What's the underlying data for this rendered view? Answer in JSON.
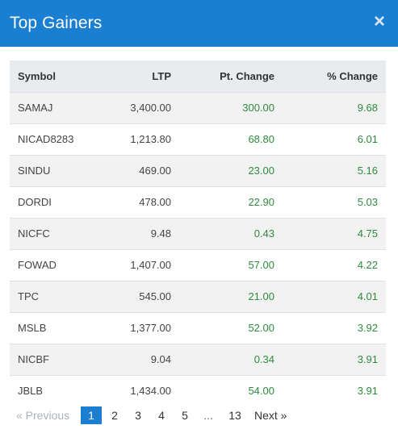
{
  "modal": {
    "title": "Top Gainers",
    "close_glyph": "×"
  },
  "table": {
    "headers": {
      "symbol": "Symbol",
      "ltp": "LTP",
      "pt_change": "Pt. Change",
      "pct_change": "% Change"
    },
    "rows": [
      {
        "symbol": "SAMAJ",
        "ltp": "3,400.00",
        "pt_change": "300.00",
        "pct_change": "9.68"
      },
      {
        "symbol": "NICAD8283",
        "ltp": "1,213.80",
        "pt_change": "68.80",
        "pct_change": "6.01"
      },
      {
        "symbol": "SINDU",
        "ltp": "469.00",
        "pt_change": "23.00",
        "pct_change": "5.16"
      },
      {
        "symbol": "DORDI",
        "ltp": "478.00",
        "pt_change": "22.90",
        "pct_change": "5.03"
      },
      {
        "symbol": "NICFC",
        "ltp": "9.48",
        "pt_change": "0.43",
        "pct_change": "4.75"
      },
      {
        "symbol": "FOWAD",
        "ltp": "1,407.00",
        "pt_change": "57.00",
        "pct_change": "4.22"
      },
      {
        "symbol": "TPC",
        "ltp": "545.00",
        "pt_change": "21.00",
        "pct_change": "4.01"
      },
      {
        "symbol": "MSLB",
        "ltp": "1,377.00",
        "pt_change": "52.00",
        "pct_change": "3.92"
      },
      {
        "symbol": "NICBF",
        "ltp": "9.04",
        "pt_change": "0.34",
        "pct_change": "3.91"
      },
      {
        "symbol": "JBLB",
        "ltp": "1,434.00",
        "pt_change": "54.00",
        "pct_change": "3.91"
      }
    ]
  },
  "pagination": {
    "previous": "«  Previous",
    "pages": [
      "1",
      "2",
      "3",
      "4",
      "5"
    ],
    "ellipsis": "...",
    "last_page": "13",
    "next": "Next  »",
    "current": "1"
  },
  "colors": {
    "header_bg": "#1a7fd1",
    "positive": "#2e8b3d",
    "active_page": "#1a7fd1"
  }
}
